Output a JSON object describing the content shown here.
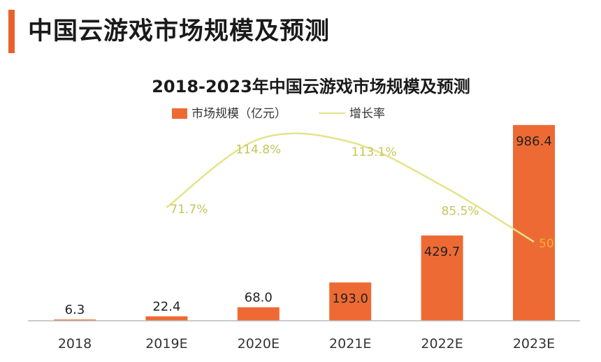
{
  "page": {
    "heading": "中国云游戏市场规模及预测"
  },
  "colors": {
    "accent": "#e8602c",
    "bar": "#ee6a34",
    "line": "#e3e48a",
    "axis": "#b8b8b8"
  },
  "chart_data": {
    "type": "bar",
    "title": "2018-2023年中国云游戏市场规模及预测",
    "categories": [
      "2018",
      "2019E",
      "2020E",
      "2021E",
      "2022E",
      "2023E"
    ],
    "series": [
      {
        "name": "市场规模（亿元）",
        "type": "bar",
        "values": [
          6.3,
          22.4,
          68.0,
          193.0,
          429.7,
          986.4
        ],
        "labels": [
          "6.3",
          "22.4",
          "68.0",
          "193.0",
          "429.7",
          "986.4"
        ]
      },
      {
        "name": "增长率",
        "type": "line",
        "x": [
          "2019E",
          "2020E",
          "2021E",
          "2022E",
          "2023E"
        ],
        "values": [
          71.7,
          114.8,
          113.1,
          85.5,
          50
        ],
        "labels": [
          "71.7%",
          "114.8%",
          "113.1%",
          "85.5%",
          "50"
        ]
      }
    ],
    "ylim": [
      0,
      1000
    ],
    "y2lim": [
      0,
      130
    ],
    "xlabel": "",
    "ylabel": "",
    "grid": false,
    "legend": "top-center"
  }
}
